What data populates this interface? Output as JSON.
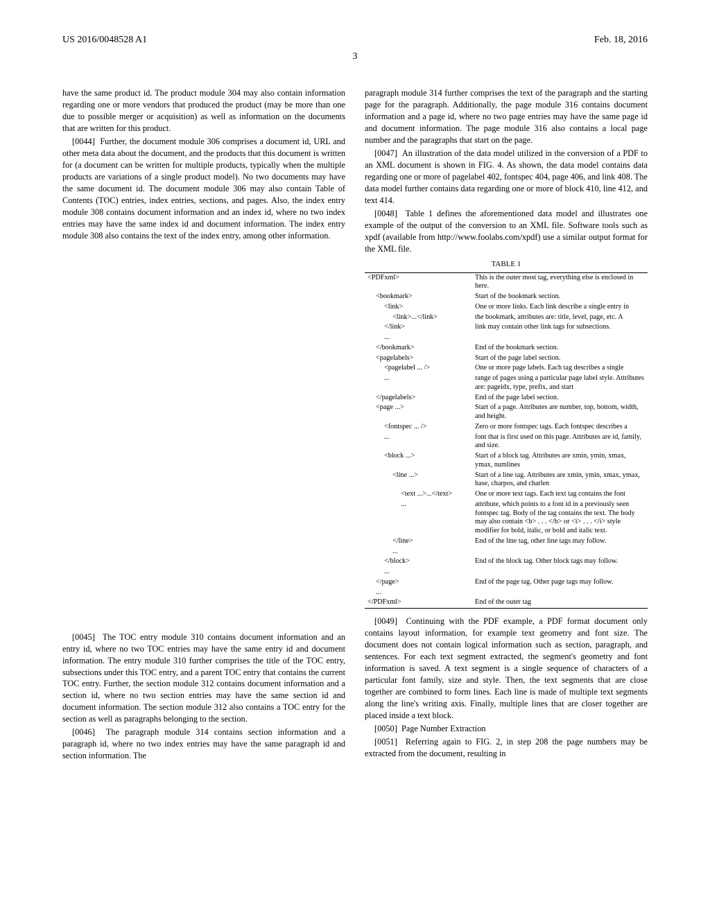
{
  "header": {
    "left": "US 2016/0048528 A1",
    "right": "Feb. 18, 2016",
    "page_number": "3"
  },
  "left_col": {
    "p0": "have the same product id. The product module 304 may also contain information regarding one or more vendors that produced the product (may be more than one due to possible merger or acquisition) as well as information on the documents that are written for this product.",
    "p1_num": "[0044]",
    "p1": "Further, the document module 306 comprises a document id, URL and other meta data about the document, and the products that this document is written for (a document can be written for multiple products, typically when the multiple products are variations of a single product model). No two documents may have the same document id. The document module 306 may also contain Table of Contents (TOC) entries, index entries, sections, and pages. Also, the index entry module 308 contains document information and an index id, where no two index entries may have the same index id and document information. The index entry module 308 also contains the text of the index entry, among other information.",
    "p2_num": "[0045]",
    "p2": "The TOC entry module 310 contains document information and an entry id, where no two TOC entries may have the same entry id and document information. The entry module 310 further comprises the title of the TOC entry, subsections under this TOC entry, and a parent TOC entry that contains the current TOC entry. Further, the section module 312 contains document information and a section id, where no two section entries may have the same section id and document information. The section module 312 also contains a TOC entry for the section as well as paragraphs belonging to the section.",
    "p3_num": "[0046]",
    "p3": "The paragraph module 314 contains section information and a paragraph id, where no two index entries may have the same paragraph id and section information. The"
  },
  "right_col": {
    "p0": "paragraph module 314 further comprises the text of the paragraph and the starting page for the paragraph. Additionally, the page module 316 contains document information and a page id, where no two page entries may have the same page id and document information. The page module 316 also contains a local page number and the paragraphs that start on the page.",
    "p1_num": "[0047]",
    "p1": "An illustration of the data model utilized in the conversion of a PDF to an XML document is shown in FIG. 4. As shown, the data model contains data regarding one or more of pagelabel 402, fontspec 404, page 406, and link 408. The data model further contains data regarding one or more of block 410, line 412, and text 414.",
    "p2_num": "[0048]",
    "p2": "Table 1 defines the aforementioned data model and illustrates one example of the output of the conversion to an XML file. Software tools such as xpdf (available from http://www.foolabs.com/xpdf) use a similar output format for the XML file.",
    "p3_num": "[0049]",
    "p3": "Continuing with the PDF example, a PDF format document only contains layout information, for example text geometry and font size. The document does not contain logical information such as section, paragraph, and sentences. For each text segment extracted, the segment's geometry and font information is saved. A text segment is a single sequence of characters of a particular font family, size and style. Then, the text segments that are close together are combined to form lines. Each line is made of multiple text segments along the line's writing axis. Finally, multiple lines that are closer together are placed inside a text block.",
    "p4_num": "[0050]",
    "p4": "Page Number Extraction",
    "p5_num": "[0051]",
    "p5": "Referring again to FIG. 2, in step 208 the page numbers may be extracted from the document, resulting in"
  },
  "table": {
    "title": "TABLE 1",
    "rows": [
      {
        "indent": 0,
        "tag": "<PDFxml>",
        "desc": "This is the outer most tag, everything else is enclosed in here."
      },
      {
        "indent": 1,
        "tag": "<bookmark>",
        "desc": "Start of the bookmark section."
      },
      {
        "indent": 2,
        "tag": "<link>",
        "desc": "One or more links. Each link describe a single entry in"
      },
      {
        "indent": 3,
        "tag": "<link>...</link>",
        "desc": "the bookmark, attributes are: title, level, page, etc. A"
      },
      {
        "indent": 2,
        "tag": "</link>",
        "desc": "link may contain other link tags for subsections."
      },
      {
        "indent": 2,
        "tag": "...",
        "desc": ""
      },
      {
        "indent": 1,
        "tag": "</bookmark>",
        "desc": "End of the bookmark section."
      },
      {
        "indent": 1,
        "tag": "<pagelabels>",
        "desc": "Start of the page label section."
      },
      {
        "indent": 2,
        "tag": "<pagelabel ... />",
        "desc": "One or more page labels. Each tag describes a single"
      },
      {
        "indent": 2,
        "tag": "...",
        "desc": "range of pages using a particular page label style. Attributes are: pageidx, type, prefix, and start"
      },
      {
        "indent": 1,
        "tag": "</pagelabels>",
        "desc": "End of the page label section."
      },
      {
        "indent": 1,
        "tag": "<page ...>",
        "desc": "Start of a page. Attributes are number, top, bottom, width, and height."
      },
      {
        "indent": 2,
        "tag": "<fontspec ... />",
        "desc": "Zero or more fontspec tags. Each fontspec describes a"
      },
      {
        "indent": 2,
        "tag": "...",
        "desc": "font that is first used on this page. Attributes are id, family, and size."
      },
      {
        "indent": 2,
        "tag": "<block ...>",
        "desc": "Start of a block tag. Attributes are xmin, ymin, xmax, ymax, numlines"
      },
      {
        "indent": 3,
        "tag": "<line ...>",
        "desc": "Start of a line tag. Attributes are xmin, ymin, xmax, ymax, base, charpos, and charlen"
      },
      {
        "indent": 4,
        "tag": "<text ...>...</text>",
        "desc": "One or more text tags. Each text tag contains the font"
      },
      {
        "indent": 4,
        "tag": "...",
        "desc": "attribute, which points to a font id in a previously seen fontspec tag. Body of the tag contains the text. The body may also contain <b> . . . </b> or <i> . . . </i> style modifier for bold, italic, or bold and italic text."
      },
      {
        "indent": 3,
        "tag": "</line>",
        "desc": "End of the line tag, other line tags may follow."
      },
      {
        "indent": 3,
        "tag": "...",
        "desc": ""
      },
      {
        "indent": 2,
        "tag": "</block>",
        "desc": "End of the block tag. Other block tags may follow."
      },
      {
        "indent": 2,
        "tag": "...",
        "desc": ""
      },
      {
        "indent": 1,
        "tag": "</page>",
        "desc": "End of the page tag. Other page tags may follow."
      },
      {
        "indent": 1,
        "tag": "...",
        "desc": ""
      },
      {
        "indent": 0,
        "tag": "</PDFxml>",
        "desc": "End of the outer tag"
      }
    ]
  }
}
